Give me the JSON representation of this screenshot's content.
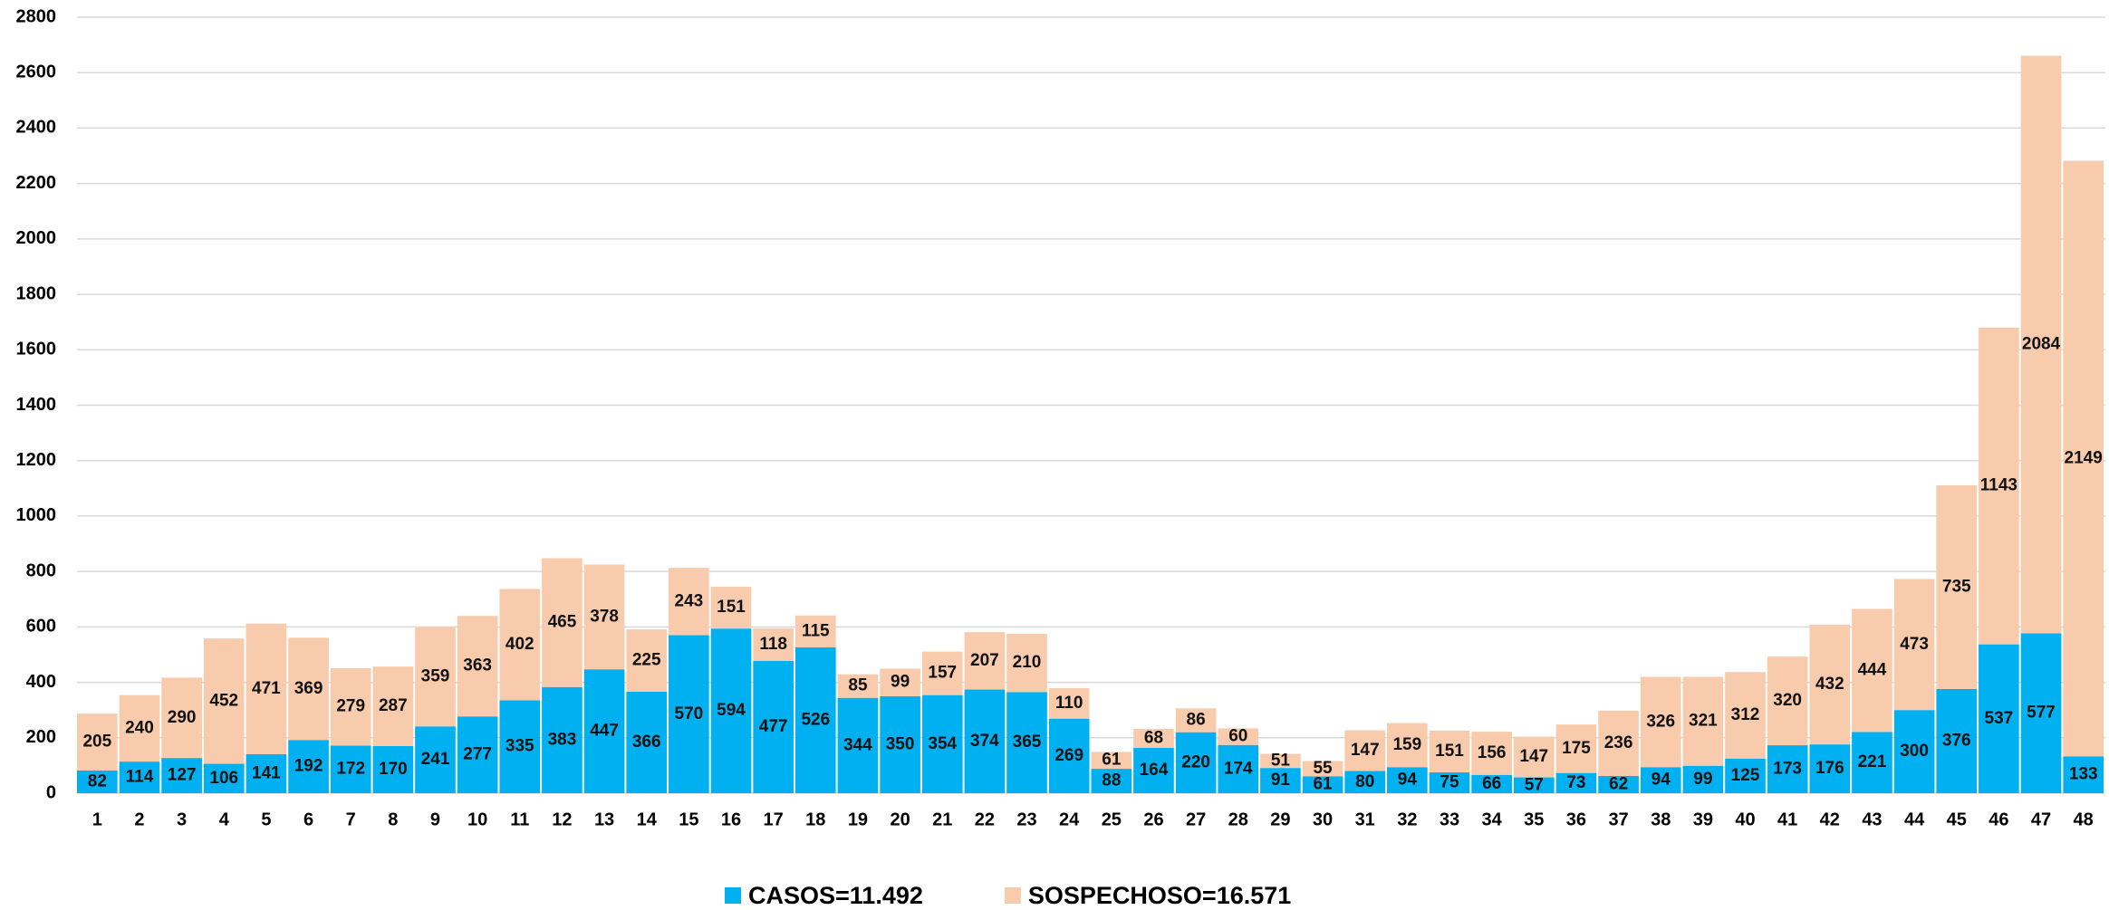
{
  "chart_data": {
    "type": "stacked_bar",
    "categories": [
      "1",
      "2",
      "3",
      "4",
      "5",
      "6",
      "7",
      "8",
      "9",
      "10",
      "11",
      "12",
      "13",
      "14",
      "15",
      "16",
      "17",
      "18",
      "19",
      "20",
      "21",
      "22",
      "23",
      "24",
      "25",
      "26",
      "27",
      "28",
      "29",
      "30",
      "31",
      "32",
      "33",
      "34",
      "35",
      "36",
      "37",
      "38",
      "39",
      "40",
      "41",
      "42",
      "43",
      "44",
      "45",
      "46",
      "47",
      "48"
    ],
    "series": [
      {
        "name": "CASOS=11.492",
        "color": "#00b0f0",
        "values": [
          82,
          114,
          127,
          106,
          141,
          192,
          172,
          170,
          241,
          277,
          335,
          383,
          447,
          366,
          570,
          594,
          477,
          526,
          344,
          350,
          354,
          374,
          365,
          269,
          88,
          164,
          220,
          174,
          91,
          61,
          80,
          94,
          75,
          66,
          57,
          73,
          62,
          94,
          99,
          125,
          173,
          176,
          221,
          300,
          376,
          537,
          577,
          133
        ]
      },
      {
        "name": "SOSPECHOSO=16.571",
        "color": "#f8cbad",
        "values": [
          205,
          240,
          290,
          452,
          471,
          369,
          279,
          287,
          359,
          363,
          402,
          465,
          378,
          225,
          243,
          151,
          118,
          115,
          85,
          99,
          157,
          207,
          210,
          110,
          61,
          68,
          86,
          60,
          51,
          55,
          147,
          159,
          151,
          156,
          147,
          175,
          236,
          326,
          321,
          312,
          320,
          432,
          444,
          473,
          735,
          1143,
          2084,
          2149
        ]
      }
    ],
    "ylim": [
      0,
      2800
    ],
    "yticks": [
      0,
      200,
      400,
      600,
      800,
      1000,
      1200,
      1400,
      1600,
      1800,
      2000,
      2200,
      2400,
      2600,
      2800
    ],
    "grid": true
  }
}
